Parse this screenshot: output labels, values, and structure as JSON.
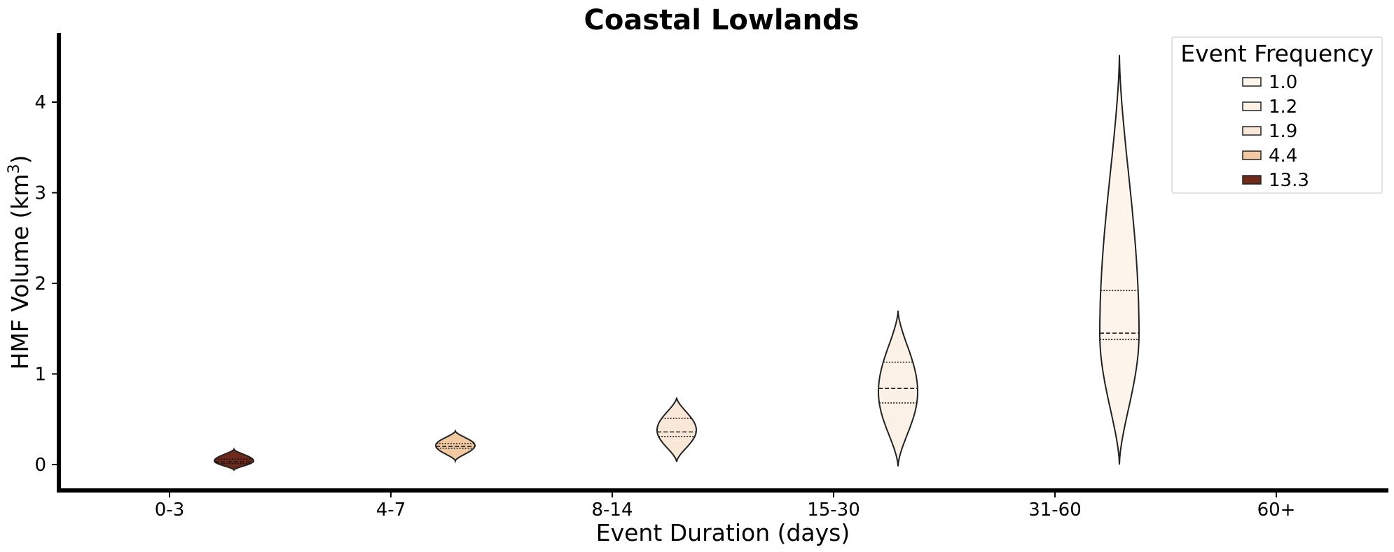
{
  "chart_data": {
    "type": "violin",
    "title": "Coastal Lowlands",
    "xlabel": "Event Duration (days)",
    "ylabel_main": "HMF Volume (km",
    "ylabel_sup": "3",
    "ylabel_close": ")",
    "categories": [
      "0-3",
      "4-7",
      "8-14",
      "15-30",
      "31-60",
      "60+"
    ],
    "yticks": [
      0,
      1,
      2,
      3,
      4
    ],
    "ylim": [
      -0.3,
      4.75
    ],
    "legend": {
      "title": "Event Frequency",
      "placement": "top-right",
      "entries": [
        {
          "label": "1.0",
          "color": "#fdf5ec"
        },
        {
          "label": "1.2",
          "color": "#fcf1e6"
        },
        {
          "label": "1.9",
          "color": "#f9e8d8"
        },
        {
          "label": "4.4",
          "color": "#f2c9a0"
        },
        {
          "label": "13.3",
          "color": "#6e2a1a"
        }
      ]
    },
    "violins": [
      {
        "category": "0-3",
        "frequency": "13.3",
        "color": "#6e2a1a",
        "min": -0.06,
        "max": 0.17,
        "q1": 0.01,
        "median": 0.03,
        "q3": 0.06,
        "mode": 0.04
      },
      {
        "category": "4-7",
        "frequency": "4.4",
        "color": "#f2c9a0",
        "min": 0.04,
        "max": 0.37,
        "q1": 0.18,
        "median": 0.2,
        "q3": 0.23,
        "mode": 0.21
      },
      {
        "category": "8-14",
        "frequency": "1.9",
        "color": "#f9e8d8",
        "min": 0.03,
        "max": 0.74,
        "q1": 0.31,
        "median": 0.36,
        "q3": 0.51,
        "mode": 0.38
      },
      {
        "category": "15-30",
        "frequency": "1.2",
        "color": "#fcf1e6",
        "min": -0.02,
        "max": 1.7,
        "q1": 0.68,
        "median": 0.84,
        "q3": 1.13,
        "mode": 0.8
      },
      {
        "category": "31-60",
        "frequency": "1.0",
        "color": "#fdf5ec",
        "min": 0.0,
        "max": 4.52,
        "q1": 1.38,
        "median": 1.45,
        "q3": 1.92,
        "mode": 1.45
      }
    ]
  }
}
